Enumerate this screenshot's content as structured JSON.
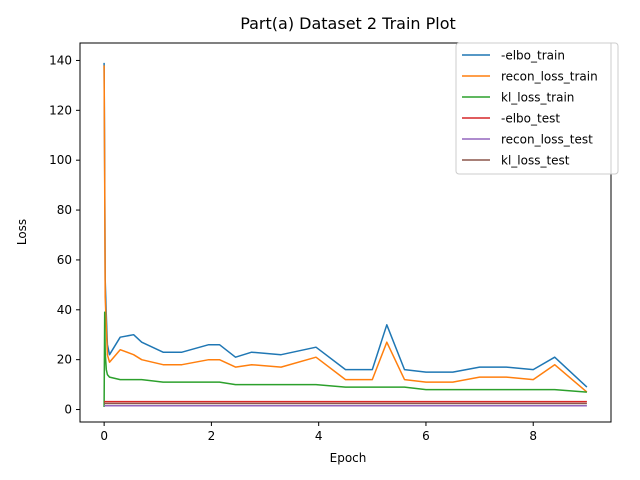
{
  "chart_data": {
    "type": "line",
    "title": "Part(a) Dataset 2 Train Plot",
    "xlabel": "Epoch",
    "ylabel": "Loss",
    "xlim": [
      -0.45,
      9.45
    ],
    "ylim": [
      -5,
      147
    ],
    "xticks": [
      0,
      2,
      4,
      6,
      8
    ],
    "xtick_labels": [
      "0",
      "2",
      "4",
      "6",
      "8"
    ],
    "yticks": [
      0,
      20,
      40,
      60,
      80,
      100,
      120,
      140
    ],
    "ytick_labels": [
      "0",
      "20",
      "40",
      "60",
      "80",
      "100",
      "120",
      "140"
    ],
    "grid": false,
    "legend_position": "top-right",
    "series": [
      {
        "name": "-elbo_train",
        "color": "#1f77b4",
        "x": [
          0,
          0.01,
          0.02,
          0.04,
          0.06,
          0.1,
          0.3,
          0.55,
          0.7,
          1.1,
          1.45,
          1.95,
          2.15,
          2.45,
          2.75,
          3.3,
          3.95,
          4.5,
          5.0,
          5.27,
          5.6,
          6.0,
          6.5,
          7.0,
          7.5,
          8.0,
          8.4,
          9.0
        ],
        "y": [
          139,
          95,
          52,
          38,
          26,
          22,
          29,
          30,
          27,
          23,
          23,
          26,
          26,
          21,
          23,
          22,
          25,
          16,
          16,
          34,
          16,
          15,
          15,
          17,
          17,
          16,
          21,
          9
        ]
      },
      {
        "name": "recon_loss_train",
        "color": "#ff7f0e",
        "x": [
          0,
          0.01,
          0.02,
          0.04,
          0.06,
          0.1,
          0.3,
          0.55,
          0.7,
          1.1,
          1.45,
          1.95,
          2.15,
          2.45,
          2.75,
          3.3,
          3.95,
          4.5,
          5.0,
          5.27,
          5.6,
          6.0,
          6.5,
          7.0,
          7.5,
          8.0,
          8.4,
          9.0
        ],
        "y": [
          138,
          90,
          45,
          33,
          22,
          19,
          24,
          22,
          20,
          18,
          18,
          20,
          20,
          17,
          18,
          17,
          21,
          12,
          12,
          27,
          12,
          11,
          11,
          13,
          13,
          12,
          18,
          7
        ]
      },
      {
        "name": "kl_loss_train",
        "color": "#2ca02c",
        "x": [
          0,
          0.01,
          0.02,
          0.04,
          0.06,
          0.1,
          0.3,
          0.55,
          0.7,
          1.1,
          1.45,
          1.95,
          2.15,
          2.45,
          2.75,
          3.3,
          3.95,
          4.5,
          5.0,
          5.27,
          5.6,
          6.0,
          6.5,
          7.0,
          7.5,
          8.0,
          8.4,
          9.0
        ],
        "y": [
          1,
          39,
          23,
          16,
          14,
          13,
          12,
          12,
          12,
          11,
          11,
          11,
          11,
          10,
          10,
          10,
          10,
          9,
          9,
          9,
          9,
          8,
          8,
          8,
          8,
          8,
          8,
          7
        ]
      },
      {
        "name": "-elbo_test",
        "color": "#d62728",
        "x": [
          0,
          9
        ],
        "y": [
          3.2,
          3.2
        ]
      },
      {
        "name": "recon_loss_test",
        "color": "#9467bd",
        "x": [
          0,
          9
        ],
        "y": [
          1.5,
          1.5
        ]
      },
      {
        "name": "kl_loss_test",
        "color": "#8c564b",
        "x": [
          0,
          9
        ],
        "y": [
          2.4,
          2.4
        ]
      }
    ]
  }
}
